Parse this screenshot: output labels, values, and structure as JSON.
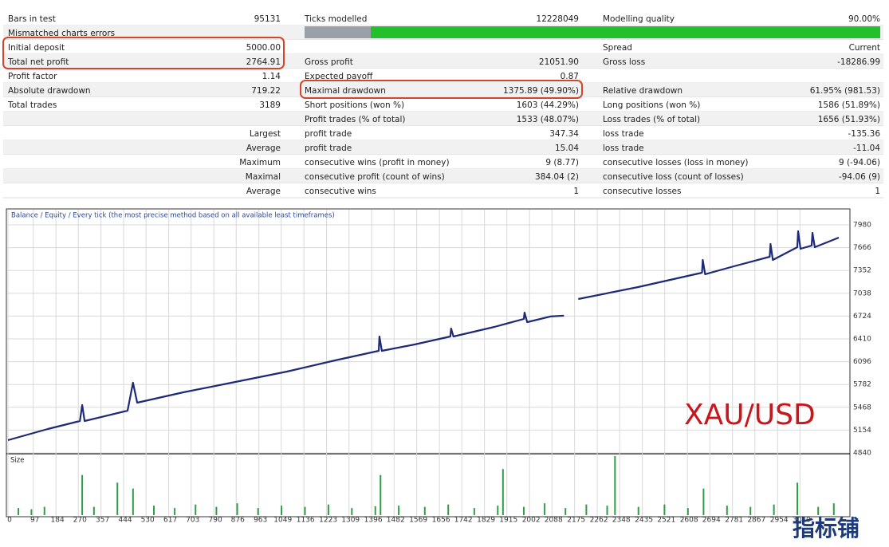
{
  "table": {
    "rows": [
      [
        "Bars in test",
        "95131",
        "Ticks modelled",
        "12228049",
        "Modelling quality",
        "90.00%"
      ],
      [
        "Mismatched charts errors",
        null,
        null,
        null,
        null,
        null
      ],
      [
        "Initial deposit",
        "5000.00",
        null,
        null,
        "Spread",
        "Current"
      ],
      [
        "Total net profit",
        "2764.91",
        "Gross profit",
        "21051.90",
        "Gross loss",
        "-18286.99"
      ],
      [
        "Profit factor",
        "1.14",
        "Expected payoff",
        "0.87",
        null,
        null
      ],
      [
        "Absolute drawdown",
        "719.22",
        "Maximal drawdown",
        "1375.89 (49.90%)",
        "Relative drawdown",
        "61.95% (981.53)"
      ],
      [
        "Total trades",
        "3189",
        "Short positions (won %)",
        "1603 (44.29%)",
        "Long positions (won %)",
        "1586 (51.89%)"
      ],
      [
        null,
        null,
        "Profit trades (% of total)",
        "1533 (48.07%)",
        "Loss trades (% of total)",
        "1656 (51.93%)"
      ],
      [
        null,
        "Largest",
        "profit trade",
        "347.34",
        "loss trade",
        "-135.36"
      ],
      [
        null,
        "Average",
        "profit trade",
        "15.04",
        "loss trade",
        "-11.04"
      ],
      [
        null,
        "Maximum",
        "consecutive wins (profit in money)",
        "9 (8.77)",
        "consecutive losses (loss in money)",
        "9 (-94.06)"
      ],
      [
        null,
        "Maximal",
        "consecutive profit (count of wins)",
        "384.04 (2)",
        "consecutive loss (count of losses)",
        "-94.06 (9)"
      ],
      [
        null,
        "Average",
        "consecutive wins",
        "1",
        "consecutive losses",
        "1"
      ]
    ]
  },
  "chart_data": [
    {
      "type": "line",
      "title": "Balance / Equity / Every tick (the most precise method based on all available least timeframes)",
      "annotation": "XAU/USD",
      "x": [
        0,
        153,
        276,
        285,
        294,
        459,
        480,
        496,
        673,
        888,
        1071,
        1255,
        1423,
        1426,
        1435,
        1561,
        1698,
        1701,
        1710,
        1867,
        1980,
        1983,
        1993,
        2082,
        2134,
        2160,
        2189,
        2419,
        2664,
        2667,
        2676,
        2786,
        2924,
        2927,
        2936,
        3030,
        3033,
        3042,
        3085,
        3088,
        3097,
        3189
      ],
      "series": [
        {
          "color": "#1e2a78",
          "values": [
            5016,
            5169,
            5279,
            5499,
            5279,
            5422,
            5806,
            5532,
            5674,
            5828,
            5960,
            6114,
            6245,
            6443,
            6245,
            6333,
            6443,
            6553,
            6443,
            6575,
            6685,
            6772,
            6641,
            6718,
            6729,
            null,
            6959,
            7124,
            7321,
            7497,
            7300,
            7409,
            7541,
            7716,
            7497,
            7673,
            7892,
            7651,
            7695,
            7870,
            7673,
            7804
          ]
        }
      ],
      "xlim": [
        0,
        3189
      ],
      "ylim": [
        4840,
        7980
      ],
      "yticks": [
        4840,
        5154,
        5468,
        5782,
        6096,
        6410,
        6724,
        7038,
        7352,
        7666,
        7980
      ],
      "grid": true
    },
    {
      "type": "bar",
      "label": "Size",
      "color": "#2e9e45",
      "x": [
        40,
        90,
        140,
        285,
        330,
        420,
        480,
        560,
        640,
        720,
        800,
        880,
        960,
        1050,
        1140,
        1230,
        1320,
        1410,
        1430,
        1500,
        1600,
        1690,
        1790,
        1880,
        1900,
        1980,
        2060,
        2140,
        2220,
        2300,
        2330,
        2420,
        2520,
        2610,
        2670,
        2760,
        2850,
        2940,
        3030,
        3110,
        3170
      ],
      "values": [
        0.012,
        0.01,
        0.014,
        0.068,
        0.014,
        0.055,
        0.045,
        0.016,
        0.012,
        0.018,
        0.014,
        0.02,
        0.012,
        0.016,
        0.014,
        0.018,
        0.012,
        0.015,
        0.068,
        0.016,
        0.014,
        0.018,
        0.012,
        0.016,
        0.078,
        0.014,
        0.02,
        0.012,
        0.018,
        0.016,
        0.1,
        0.014,
        0.018,
        0.012,
        0.045,
        0.016,
        0.014,
        0.018,
        0.055,
        0.014,
        0.02
      ],
      "xlim": [
        0,
        3189
      ],
      "ylim": [
        0,
        0.1
      ],
      "xticks": [
        0,
        97,
        184,
        270,
        357,
        444,
        530,
        617,
        703,
        790,
        876,
        963,
        1049,
        1136,
        1223,
        1309,
        1396,
        1482,
        1569,
        1656,
        1742,
        1829,
        1915,
        2002,
        2088,
        2175,
        2262,
        2348,
        2435,
        2521,
        2608,
        2694,
        2781,
        2867,
        2954,
        3040
      ],
      "watermark": "指标铺"
    }
  ]
}
